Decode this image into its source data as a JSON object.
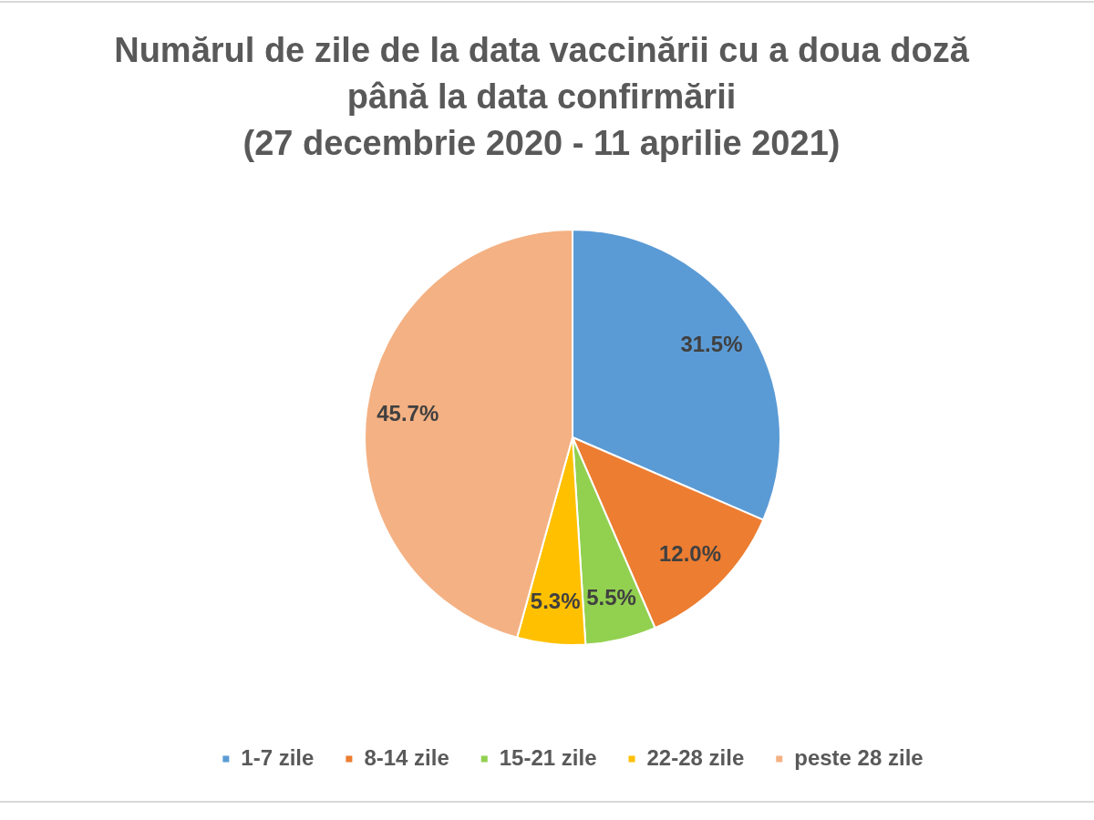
{
  "chart_data": {
    "type": "pie",
    "title": "Numărul de zile de la data vaccinării cu a doua doză\npână la data confirmării\n(27 decembrie 2020 - 11 aprilie 2021)",
    "categories": [
      "1-7 zile",
      "8-14 zile",
      "15-21 zile",
      "22-28 zile",
      "peste 28 zile"
    ],
    "values": [
      31.5,
      12.0,
      5.5,
      5.3,
      45.7
    ],
    "colors": [
      "#5b9bd5",
      "#ed7d31",
      "#92d050",
      "#ffc000",
      "#f4b183"
    ],
    "value_labels": [
      "31.5%",
      "12.0%",
      "5.5%",
      "5.3%",
      "45.7%"
    ],
    "legend": "bottom"
  }
}
